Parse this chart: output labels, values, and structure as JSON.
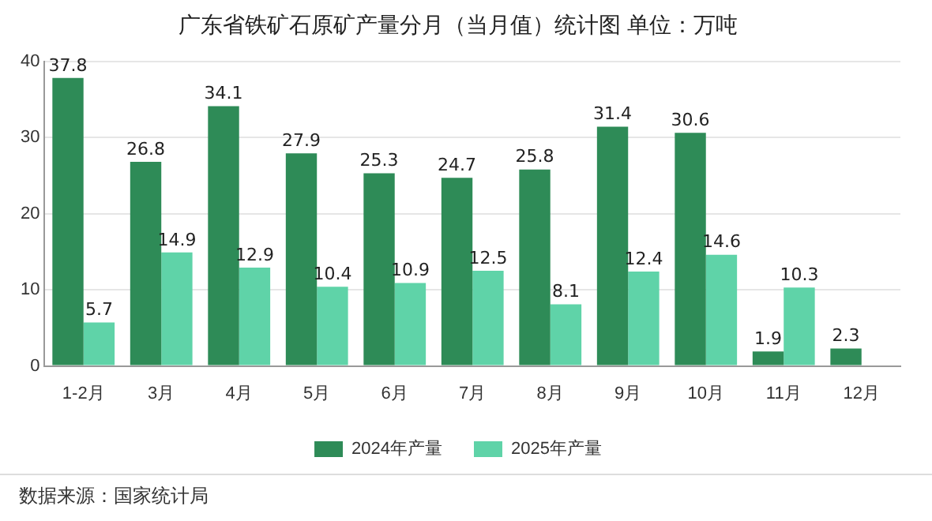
{
  "chart_data": {
    "type": "bar",
    "title": "广东省铁矿石原矿产量分月（当月值）统计图 单位：万吨",
    "categories": [
      "1-2月",
      "3月",
      "4月",
      "5月",
      "6月",
      "7月",
      "8月",
      "9月",
      "10月",
      "11月",
      "12月"
    ],
    "series": [
      {
        "name": "2024年产量",
        "color": "#2e8b57",
        "values": [
          37.8,
          26.8,
          34.1,
          27.9,
          25.3,
          24.7,
          25.8,
          31.4,
          30.6,
          1.9,
          2.3
        ]
      },
      {
        "name": "2025年产量",
        "color": "#5fd3a8",
        "values": [
          5.7,
          14.9,
          12.9,
          10.4,
          10.9,
          12.5,
          8.1,
          12.4,
          14.6,
          10.3,
          null
        ]
      }
    ],
    "ylim": [
      0,
      40
    ],
    "yticks": [
      0,
      10,
      20,
      30,
      40
    ],
    "grid": "y",
    "legend": "bottom",
    "data_labels": true,
    "annotations": [
      "数据来源：国家统计局"
    ]
  }
}
